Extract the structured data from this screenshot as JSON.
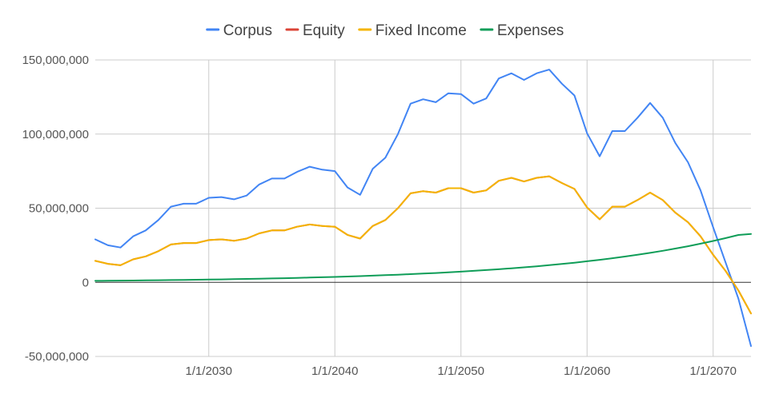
{
  "chart_data": {
    "type": "line",
    "title": "",
    "xlabel": "",
    "ylabel": "",
    "xlim": [
      2021,
      2073
    ],
    "ylim": [
      -50000000,
      150000000
    ],
    "grid": true,
    "legend_position": "top",
    "x_ticks": [
      2030,
      2040,
      2050,
      2060,
      2070
    ],
    "x_tick_labels": [
      "1/1/2030",
      "1/1/2040",
      "1/1/2050",
      "1/1/2060",
      "1/1/2070"
    ],
    "y_ticks": [
      -50000000,
      0,
      50000000,
      100000000,
      150000000
    ],
    "y_tick_labels": [
      "-50,000,000",
      "0",
      "50,000,000",
      "100,000,000",
      "150,000,000"
    ],
    "x": [
      2021,
      2022,
      2023,
      2024,
      2025,
      2026,
      2027,
      2028,
      2029,
      2030,
      2031,
      2032,
      2033,
      2034,
      2035,
      2036,
      2037,
      2038,
      2039,
      2040,
      2041,
      2042,
      2043,
      2044,
      2045,
      2046,
      2047,
      2048,
      2049,
      2050,
      2051,
      2052,
      2053,
      2054,
      2055,
      2056,
      2057,
      2058,
      2059,
      2060,
      2061,
      2062,
      2063,
      2064,
      2065,
      2066,
      2067,
      2068,
      2069,
      2070,
      2071,
      2072,
      2073
    ],
    "series": [
      {
        "name": "Corpus",
        "color": "#4285f4",
        "values": [
          29000000,
          25000000,
          23500000,
          31000000,
          35000000,
          42000000,
          51000000,
          53000000,
          53000000,
          57000000,
          57500000,
          56000000,
          58500000,
          66000000,
          70000000,
          70000000,
          74500000,
          78000000,
          76000000,
          75000000,
          64000000,
          59000000,
          76500000,
          84000000,
          100000000,
          120500000,
          123500000,
          121500000,
          127500000,
          127000000,
          120500000,
          124000000,
          137500000,
          141000000,
          136500000,
          141000000,
          143500000,
          134000000,
          126000000,
          100500000,
          85000000,
          102000000,
          102000000,
          111000000,
          121000000,
          111000000,
          94000000,
          81000000,
          62000000,
          37000000,
          13000000,
          -11000000,
          -43000000
        ]
      },
      {
        "name": "Equity",
        "color": "#db4437",
        "values": [
          14500000,
          12500000,
          11500000,
          15500000,
          17500000,
          21000000,
          25500000,
          26500000,
          26500000,
          28500000,
          29000000,
          28000000,
          29500000,
          33000000,
          35000000,
          35000000,
          37500000,
          39000000,
          38000000,
          37500000,
          32000000,
          29500000,
          38000000,
          42000000,
          50000000,
          60000000,
          61500000,
          60500000,
          63500000,
          63500000,
          60500000,
          62000000,
          68500000,
          70500000,
          68000000,
          70500000,
          71500000,
          67000000,
          63000000,
          50500000,
          42500000,
          51000000,
          51000000,
          55500000,
          60500000,
          55500000,
          47000000,
          40500000,
          31000000,
          18500000,
          7500000,
          -5500000,
          -21000000
        ]
      },
      {
        "name": "Fixed Income",
        "color": "#f4b400",
        "values": [
          14500000,
          12500000,
          11500000,
          15500000,
          17500000,
          21000000,
          25500000,
          26500000,
          26500000,
          28500000,
          29000000,
          28000000,
          29500000,
          33000000,
          35000000,
          35000000,
          37500000,
          39000000,
          38000000,
          37500000,
          32000000,
          29500000,
          38000000,
          42000000,
          50000000,
          60000000,
          61500000,
          60500000,
          63500000,
          63500000,
          60500000,
          62000000,
          68500000,
          70500000,
          68000000,
          70500000,
          71500000,
          67000000,
          63000000,
          50500000,
          42500000,
          51000000,
          51000000,
          55500000,
          60500000,
          55500000,
          47000000,
          40500000,
          31000000,
          18500000,
          7500000,
          -5500000,
          -21000000
        ]
      },
      {
        "name": "Expenses",
        "color": "#0f9d58",
        "values": [
          1000000,
          1070000,
          1150000,
          1230000,
          1320000,
          1410000,
          1510000,
          1620000,
          1730000,
          1860000,
          1990000,
          2130000,
          2280000,
          2440000,
          2610000,
          2790000,
          2990000,
          3200000,
          3420000,
          3660000,
          3920000,
          4190000,
          4490000,
          4800000,
          5140000,
          5500000,
          5880000,
          6300000,
          6740000,
          7210000,
          7710000,
          8250000,
          8830000,
          9450000,
          10110000,
          10820000,
          11570000,
          12380000,
          13250000,
          14180000,
          15170000,
          16230000,
          17370000,
          18590000,
          19890000,
          21280000,
          22770000,
          24360000,
          26070000,
          27900000,
          29850000,
          31930000,
          32600000
        ]
      }
    ]
  }
}
